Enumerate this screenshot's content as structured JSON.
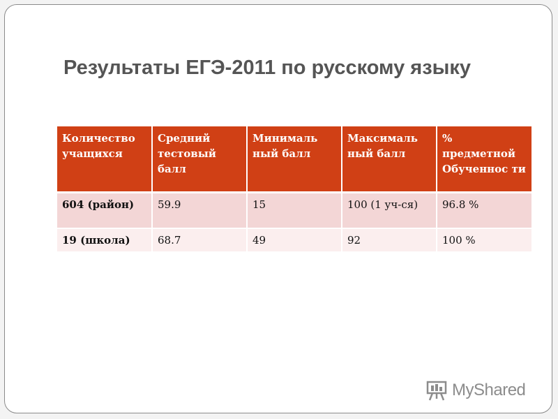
{
  "slide": {
    "title": "Результаты ЕГЭ-2011 по русскому языку"
  },
  "table": {
    "headers": [
      "Количество учащихся",
      "Средний тестовый балл",
      "Минималь ный балл",
      "Максималь ный балл",
      "% предметной Обученнос ти"
    ],
    "rows": [
      [
        "604 (район)",
        "59.9",
        "15",
        "100 (1 уч-ся)",
        "96.8 %"
      ],
      [
        "19 (школа)",
        "68.7",
        "49",
        "92",
        "100 %"
      ]
    ]
  },
  "watermark": {
    "text": "MyShared",
    "icon": "presentation-board-icon"
  },
  "colors": {
    "header_bg": "#d04015",
    "row_odd_bg": "#f3d6d6",
    "row_even_bg": "#fbeeee",
    "title_text": "#555555"
  }
}
